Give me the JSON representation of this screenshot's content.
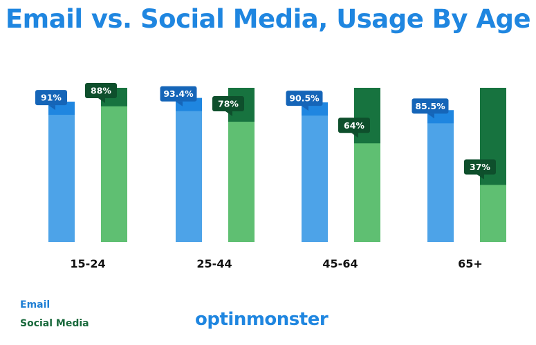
{
  "colors": {
    "title": "#1f86e0",
    "email_bar": "#4da3e8",
    "email_cap": "#1f86e0",
    "email_label_bg": "#1565b8",
    "social_bar": "#5fbf72",
    "social_cap": "#17733f",
    "social_label_bg": "#0e4f2c",
    "axis_label": "#111111"
  },
  "legend": {
    "email_label": "Email",
    "social_label": "Social Media",
    "email_color": "#1f7fd4",
    "social_color": "#17683a"
  },
  "brand": {
    "logo_text": "optinmonster"
  },
  "chart_data": {
    "type": "bar",
    "title": "Email vs. Social Media, Usage By Age",
    "xlabel": "",
    "ylabel": "",
    "ylim": [
      0,
      100
    ],
    "categories": [
      "15-24",
      "25-44",
      "45-64",
      "65+"
    ],
    "series": [
      {
        "name": "Email",
        "values": [
          91,
          93.4,
          90.5,
          85.5
        ],
        "labels": [
          "91%",
          "93.4%",
          "90.5%",
          "85.5%"
        ]
      },
      {
        "name": "Social Media",
        "values": [
          88,
          78,
          64,
          37
        ],
        "labels": [
          "88%",
          "78%",
          "64%",
          "37%"
        ]
      }
    ]
  }
}
